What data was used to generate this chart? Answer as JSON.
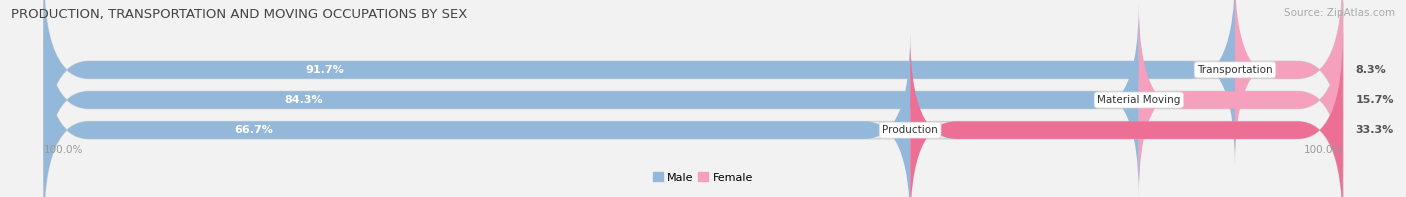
{
  "title": "PRODUCTION, TRANSPORTATION AND MOVING OCCUPATIONS BY SEX",
  "source": "Source: ZipAtlas.com",
  "categories": [
    "Transportation",
    "Material Moving",
    "Production"
  ],
  "male_values": [
    91.7,
    84.3,
    66.7
  ],
  "female_values": [
    8.3,
    15.7,
    33.3
  ],
  "male_color": "#94b8d9",
  "female_color_transport": "#f5a0bc",
  "female_color_material": "#f5a0bc",
  "female_color_production": "#ee6f96",
  "bg_color": "#f2f2f2",
  "bar_bg_color": "#e4e4ec",
  "title_fontsize": 9.5,
  "source_fontsize": 7.5,
  "tick_label": "100.0%",
  "bar_height": 0.58,
  "total_width": 100.0,
  "xlim_left": -2.5,
  "xlim_right": 104.0,
  "ylim_bottom": -0.65,
  "ylim_top": 2.75
}
